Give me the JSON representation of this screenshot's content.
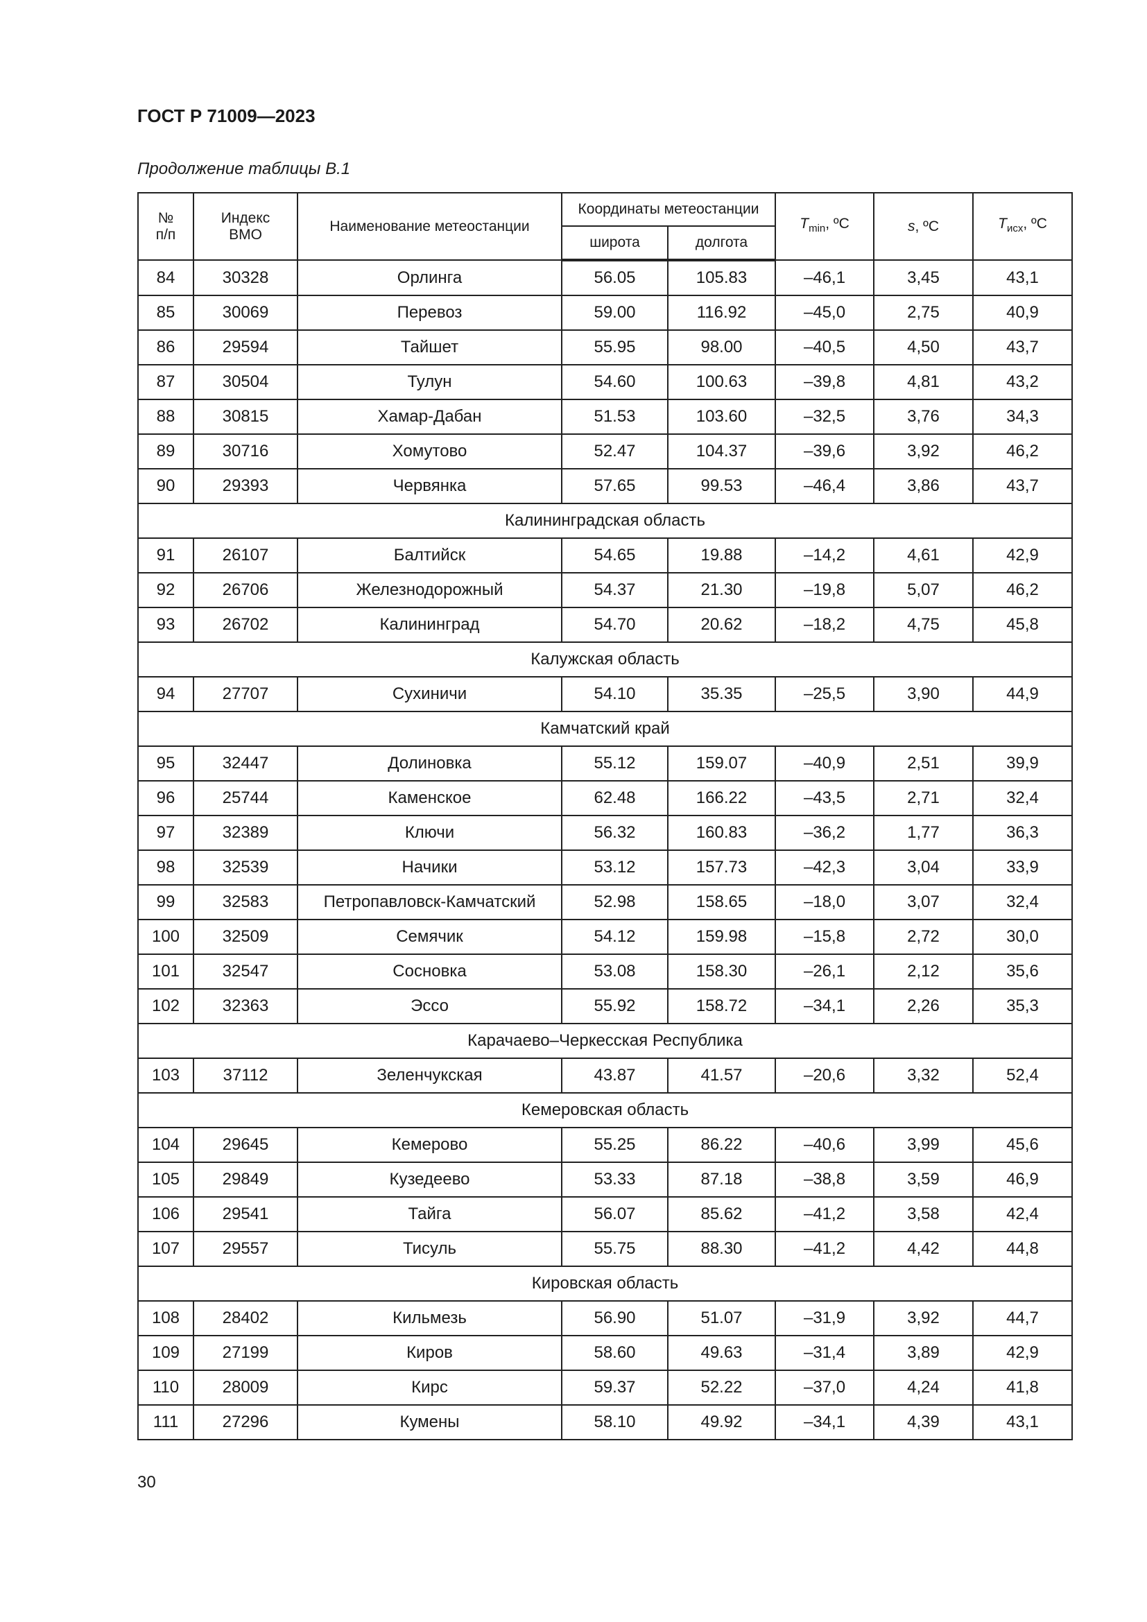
{
  "header": {
    "standard": "ГОСТ Р 71009—2023",
    "caption": "Продолжение таблицы В.1"
  },
  "table": {
    "columns": {
      "number": [
        "№",
        "п/п"
      ],
      "index": [
        "Индекс",
        "ВМО"
      ],
      "name": "Наименование метеостанции",
      "coordinates": {
        "title": "Координаты метеостанции",
        "latitude": "широта",
        "longitude": "долгота"
      },
      "tmin": {
        "symbol": "T",
        "subscript": "min",
        "unit": ", ºC"
      },
      "s": {
        "symbol": "s",
        "unit": ", ºC"
      },
      "tisx": {
        "symbol": "T",
        "subscript": "исх",
        "unit": ", ºC"
      }
    },
    "rows": [
      [
        "84",
        "30328",
        "Орлинга",
        "56.05",
        "105.83",
        "–46,1",
        "3,45",
        "43,1"
      ],
      [
        "85",
        "30069",
        "Перевоз",
        "59.00",
        "116.92",
        "–45,0",
        "2,75",
        "40,9"
      ],
      [
        "86",
        "29594",
        "Тайшет",
        "55.95",
        "98.00",
        "–40,5",
        "4,50",
        "43,7"
      ],
      [
        "87",
        "30504",
        "Тулун",
        "54.60",
        "100.63",
        "–39,8",
        "4,81",
        "43,2"
      ],
      [
        "88",
        "30815",
        "Хамар-Дабан",
        "51.53",
        "103.60",
        "–32,5",
        "3,76",
        "34,3"
      ],
      [
        "89",
        "30716",
        "Хомутово",
        "52.47",
        "104.37",
        "–39,6",
        "3,92",
        "46,2"
      ],
      [
        "90",
        "29393",
        "Червянка",
        "57.65",
        "99.53",
        "–46,4",
        "3,86",
        "43,7"
      ],
      {
        "region": "Калининградская область"
      },
      [
        "91",
        "26107",
        "Балтийск",
        "54.65",
        "19.88",
        "–14,2",
        "4,61",
        "42,9"
      ],
      [
        "92",
        "26706",
        "Железнодорожный",
        "54.37",
        "21.30",
        "–19,8",
        "5,07",
        "46,2"
      ],
      [
        "93",
        "26702",
        "Калининград",
        "54.70",
        "20.62",
        "–18,2",
        "4,75",
        "45,8"
      ],
      {
        "region": "Калужская область"
      },
      [
        "94",
        "27707",
        "Сухиничи",
        "54.10",
        "35.35",
        "–25,5",
        "3,90",
        "44,9"
      ],
      {
        "region": "Камчатский край"
      },
      [
        "95",
        "32447",
        "Долиновка",
        "55.12",
        "159.07",
        "–40,9",
        "2,51",
        "39,9"
      ],
      [
        "96",
        "25744",
        "Каменское",
        "62.48",
        "166.22",
        "–43,5",
        "2,71",
        "32,4"
      ],
      [
        "97",
        "32389",
        "Ключи",
        "56.32",
        "160.83",
        "–36,2",
        "1,77",
        "36,3"
      ],
      [
        "98",
        "32539",
        "Начики",
        "53.12",
        "157.73",
        "–42,3",
        "3,04",
        "33,9"
      ],
      [
        "99",
        "32583",
        "Петропавловск-Камчатский",
        "52.98",
        "158.65",
        "–18,0",
        "3,07",
        "32,4"
      ],
      [
        "100",
        "32509",
        "Семячик",
        "54.12",
        "159.98",
        "–15,8",
        "2,72",
        "30,0"
      ],
      [
        "101",
        "32547",
        "Сосновка",
        "53.08",
        "158.30",
        "–26,1",
        "2,12",
        "35,6"
      ],
      [
        "102",
        "32363",
        "Эссо",
        "55.92",
        "158.72",
        "–34,1",
        "2,26",
        "35,3"
      ],
      {
        "region": "Карачаево–Черкесская Республика"
      },
      [
        "103",
        "37112",
        "Зеленчукская",
        "43.87",
        "41.57",
        "–20,6",
        "3,32",
        "52,4"
      ],
      {
        "region": "Кемеровская область"
      },
      [
        "104",
        "29645",
        "Кемерово",
        "55.25",
        "86.22",
        "–40,6",
        "3,99",
        "45,6"
      ],
      [
        "105",
        "29849",
        "Кузедеево",
        "53.33",
        "87.18",
        "–38,8",
        "3,59",
        "46,9"
      ],
      [
        "106",
        "29541",
        "Тайга",
        "56.07",
        "85.62",
        "–41,2",
        "3,58",
        "42,4"
      ],
      [
        "107",
        "29557",
        "Тисуль",
        "55.75",
        "88.30",
        "–41,2",
        "4,42",
        "44,8"
      ],
      {
        "region": "Кировская область"
      },
      [
        "108",
        "28402",
        "Кильмезь",
        "56.90",
        "51.07",
        "–31,9",
        "3,92",
        "44,7"
      ],
      [
        "109",
        "27199",
        "Киров",
        "58.60",
        "49.63",
        "–31,4",
        "3,89",
        "42,9"
      ],
      [
        "110",
        "28009",
        "Кирс",
        "59.37",
        "52.22",
        "–37,0",
        "4,24",
        "41,8"
      ],
      [
        "111",
        "27296",
        "Кумены",
        "58.10",
        "49.92",
        "–34,1",
        "4,39",
        "43,1"
      ]
    ]
  },
  "footer": {
    "page": "30"
  }
}
